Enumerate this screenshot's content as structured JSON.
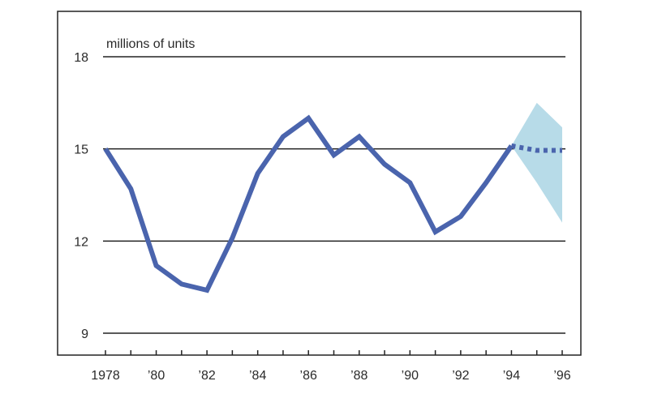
{
  "chart_data": {
    "type": "line",
    "ylabel": "millions of units",
    "ylim": [
      9,
      18
    ],
    "yticks": [
      9,
      12,
      15,
      18
    ],
    "ytick_labels": [
      "9",
      "12",
      "15",
      "18"
    ],
    "xlim": [
      1978,
      1996
    ],
    "xticks": [
      1978,
      1980,
      1982,
      1984,
      1986,
      1988,
      1990,
      1992,
      1994,
      1996
    ],
    "xtick_labels": [
      "1978",
      "’80",
      "’82",
      "’84",
      "’86",
      "’88",
      "’90",
      "’92",
      "’94",
      "’96"
    ],
    "grid": "horizontal",
    "series": [
      {
        "style": "solid",
        "color": "#4a64ad",
        "x": [
          1978,
          1979,
          1980,
          1981,
          1982,
          1983,
          1984,
          1985,
          1986,
          1987,
          1988,
          1989,
          1990,
          1991,
          1992,
          1993,
          1994
        ],
        "y": [
          15.0,
          13.7,
          11.2,
          10.6,
          10.4,
          12.1,
          14.2,
          15.4,
          16.0,
          14.8,
          15.4,
          14.5,
          13.9,
          12.3,
          12.8,
          13.9,
          15.1
        ]
      },
      {
        "style": "dashed",
        "color": "#4a64ad",
        "x": [
          1994,
          1995,
          1996
        ],
        "y": [
          15.1,
          14.95,
          14.95
        ]
      }
    ],
    "bands": [
      {
        "color": "#b7dbe8",
        "x": [
          1994,
          1995,
          1996
        ],
        "upper": [
          15.1,
          16.5,
          15.7
        ],
        "lower": [
          15.1,
          13.9,
          12.6
        ]
      }
    ]
  }
}
